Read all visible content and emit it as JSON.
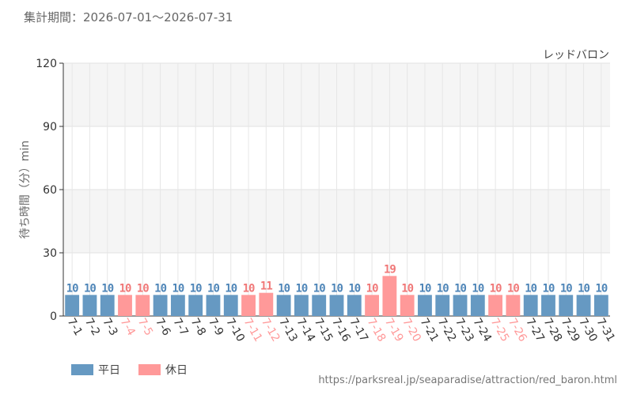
{
  "header": {
    "period_label": "集計期間：2026-07-01～2026-07-31"
  },
  "legend": {
    "weekday_label": "平日",
    "holiday_label": "休日"
  },
  "footer": {
    "source_url": "https://parksreal.jp/seaparadise/attraction/red_baron.html"
  },
  "colors": {
    "weekday": "#6699c2",
    "holiday": "#ff9999",
    "weekday_text": "#4f86b8",
    "holiday_text": "#f07878"
  },
  "chart_data": {
    "type": "bar",
    "title": "レッドバロン",
    "ylabel": "待ち時間（分）min",
    "xlabel": "",
    "ylim": [
      0,
      120
    ],
    "yticks": [
      0,
      30,
      60,
      90,
      120
    ],
    "grid": true,
    "legend_position": "bottom-left",
    "categories": [
      "7-1",
      "7-2",
      "7-3",
      "7-4",
      "7-5",
      "7-6",
      "7-7",
      "7-8",
      "7-9",
      "7-10",
      "7-11",
      "7-12",
      "7-13",
      "7-14",
      "7-15",
      "7-16",
      "7-17",
      "7-18",
      "7-19",
      "7-20",
      "7-21",
      "7-22",
      "7-23",
      "7-24",
      "7-25",
      "7-26",
      "7-27",
      "7-28",
      "7-29",
      "7-30",
      "7-31"
    ],
    "values": [
      10,
      10,
      10,
      10,
      10,
      10,
      10,
      10,
      10,
      10,
      10,
      11,
      10,
      10,
      10,
      10,
      10,
      10,
      19,
      10,
      10,
      10,
      10,
      10,
      10,
      10,
      10,
      10,
      10,
      10,
      10
    ],
    "day_types": [
      "weekday",
      "weekday",
      "weekday",
      "holiday",
      "holiday",
      "weekday",
      "weekday",
      "weekday",
      "weekday",
      "weekday",
      "holiday",
      "holiday",
      "weekday",
      "weekday",
      "weekday",
      "weekday",
      "weekday",
      "holiday",
      "holiday",
      "holiday",
      "weekday",
      "weekday",
      "weekday",
      "weekday",
      "holiday",
      "holiday",
      "weekday",
      "weekday",
      "weekday",
      "weekday",
      "weekday"
    ]
  }
}
